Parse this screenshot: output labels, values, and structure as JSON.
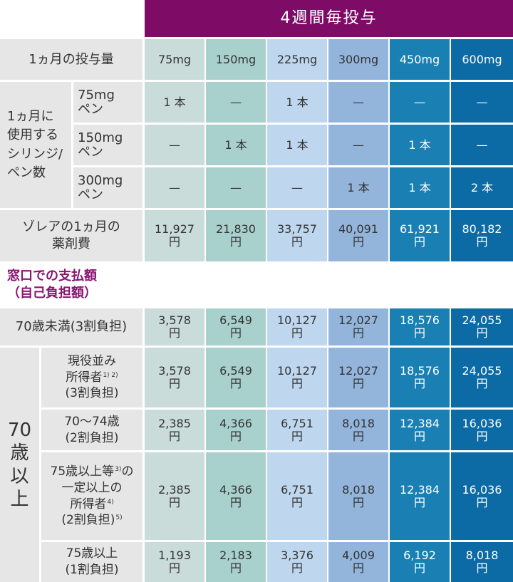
{
  "header": {
    "title": "4週間毎投与"
  },
  "dose": {
    "label": "1ヵ月の投与量",
    "values": [
      "75mg",
      "150mg",
      "225mg",
      "300mg",
      "450mg",
      "600mg"
    ]
  },
  "syringes": {
    "label": [
      "1ヵ月に",
      "使用する",
      "シリンジ/",
      "ペン数"
    ],
    "rows": [
      {
        "label": [
          "75mg",
          "ペン"
        ],
        "values": [
          "1 本",
          "—",
          "1 本",
          "—",
          "—",
          "—"
        ]
      },
      {
        "label": [
          "150mg",
          "ペン"
        ],
        "values": [
          "—",
          "1 本",
          "1 本",
          "—",
          "1 本",
          "—"
        ]
      },
      {
        "label": [
          "300mg",
          "ペン"
        ],
        "values": [
          "—",
          "—",
          "—",
          "1 本",
          "1 本",
          "2 本"
        ]
      }
    ]
  },
  "cost": {
    "label": [
      "ゾレアの1ヵ月の",
      "薬剤費"
    ],
    "values": [
      "11,927",
      "21,830",
      "33,757",
      "40,091",
      "61,921",
      "80,182"
    ],
    "unit": "円"
  },
  "payment": {
    "title": [
      "窓口での支払額",
      "（自己負担額）"
    ],
    "unit": "円",
    "under70": {
      "label": "70歳未満(3割負担)",
      "values": [
        "3,578",
        "6,549",
        "10,127",
        "12,027",
        "18,576",
        "24,055"
      ]
    },
    "over70": {
      "label": [
        "70",
        "歳",
        "以",
        "上"
      ],
      "rows": [
        {
          "label": [
            "現役並み",
            [
              "所得者",
              {
                "sup": "1) 2)"
              }
            ],
            "(3割負担)"
          ],
          "values": [
            "3,578",
            "6,549",
            "10,127",
            "12,027",
            "18,576",
            "24,055"
          ]
        },
        {
          "label": [
            "70〜74歳",
            "(2割負担)"
          ],
          "values": [
            "2,385",
            "4,366",
            "6,751",
            "8,018",
            "12,384",
            "16,036"
          ]
        },
        {
          "label": [
            [
              "75歳以上等",
              {
                "sup": "3)"
              },
              "の"
            ],
            "一定以上の",
            [
              "所得者",
              {
                "sup": "4)"
              }
            ],
            [
              "(2割負担)",
              {
                "sup": "5)"
              }
            ]
          ],
          "values": [
            "2,385",
            "4,366",
            "6,751",
            "8,018",
            "12,384",
            "16,036"
          ]
        },
        {
          "label": [
            "75歳以上",
            "(1割負担)"
          ],
          "values": [
            "1,193",
            "2,183",
            "3,376",
            "4,009",
            "6,192",
            "8,018"
          ]
        }
      ]
    }
  }
}
